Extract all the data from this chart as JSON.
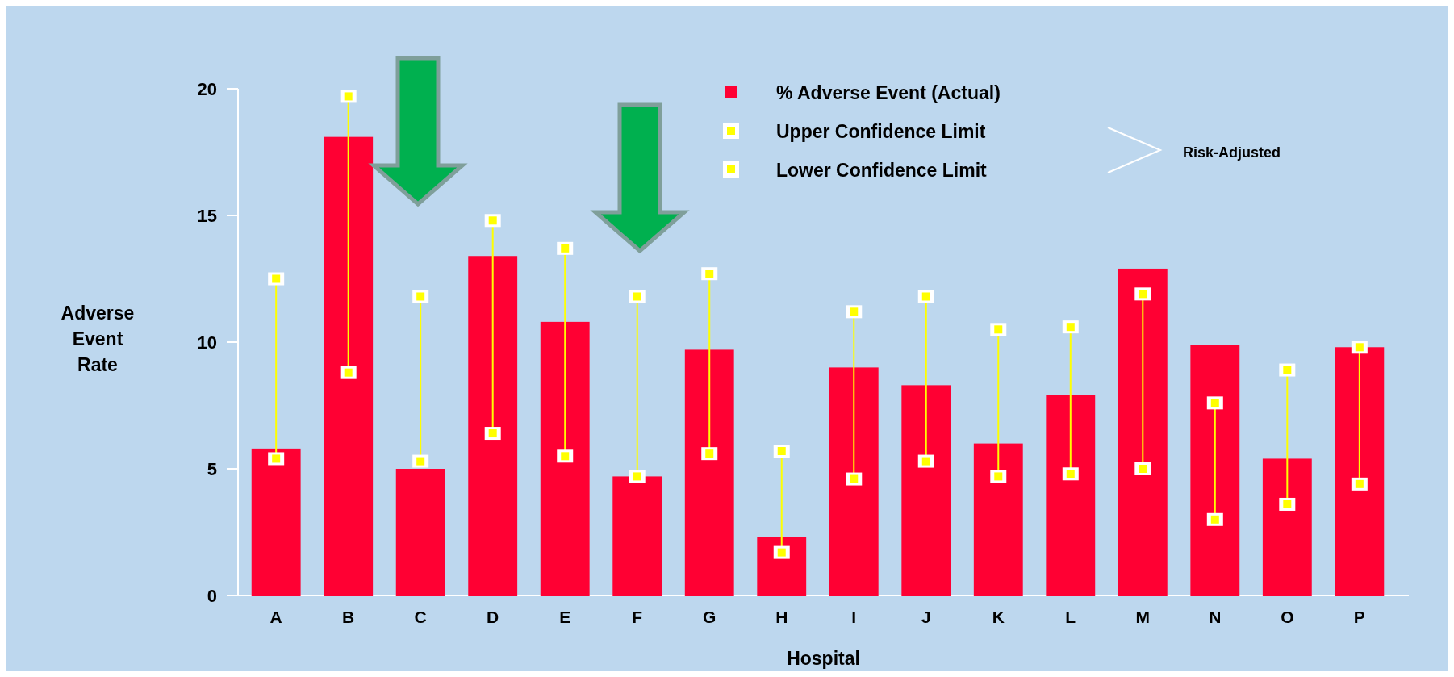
{
  "chart_data": {
    "type": "bar",
    "xlabel": "Hospital",
    "ylabel": "Adverse Event Rate",
    "categories": [
      "A",
      "B",
      "C",
      "D",
      "E",
      "F",
      "G",
      "H",
      "I",
      "J",
      "K",
      "L",
      "M",
      "N",
      "O",
      "P"
    ],
    "series": [
      {
        "name": "% Adverse Event (Actual)",
        "color": "#ff0033",
        "values": [
          5.8,
          18.1,
          5.0,
          13.4,
          10.8,
          4.7,
          9.7,
          2.3,
          9.0,
          8.3,
          6.0,
          7.9,
          12.9,
          9.9,
          5.4,
          9.8
        ]
      },
      {
        "name": "Upper Confidence Limit",
        "type": "scatter",
        "marker": "square",
        "color": "#ffff00",
        "values": [
          12.5,
          19.7,
          11.8,
          14.8,
          13.7,
          11.8,
          12.7,
          5.7,
          11.2,
          11.8,
          10.5,
          10.6,
          11.9,
          7.6,
          8.9,
          9.8
        ]
      },
      {
        "name": "Lower Confidence Limit",
        "type": "scatter",
        "marker": "square",
        "color": "#ffff00",
        "values": [
          5.4,
          8.8,
          5.3,
          6.4,
          5.5,
          4.7,
          5.6,
          1.7,
          4.6,
          5.3,
          4.7,
          4.8,
          5.0,
          3.0,
          3.6,
          4.4
        ]
      }
    ],
    "ylim": [
      0,
      20
    ],
    "yticks": [
      0,
      5,
      10,
      15,
      20
    ],
    "grid": false,
    "legend": "top right",
    "annotations": [
      "Risk-Adjusted"
    ]
  }
}
